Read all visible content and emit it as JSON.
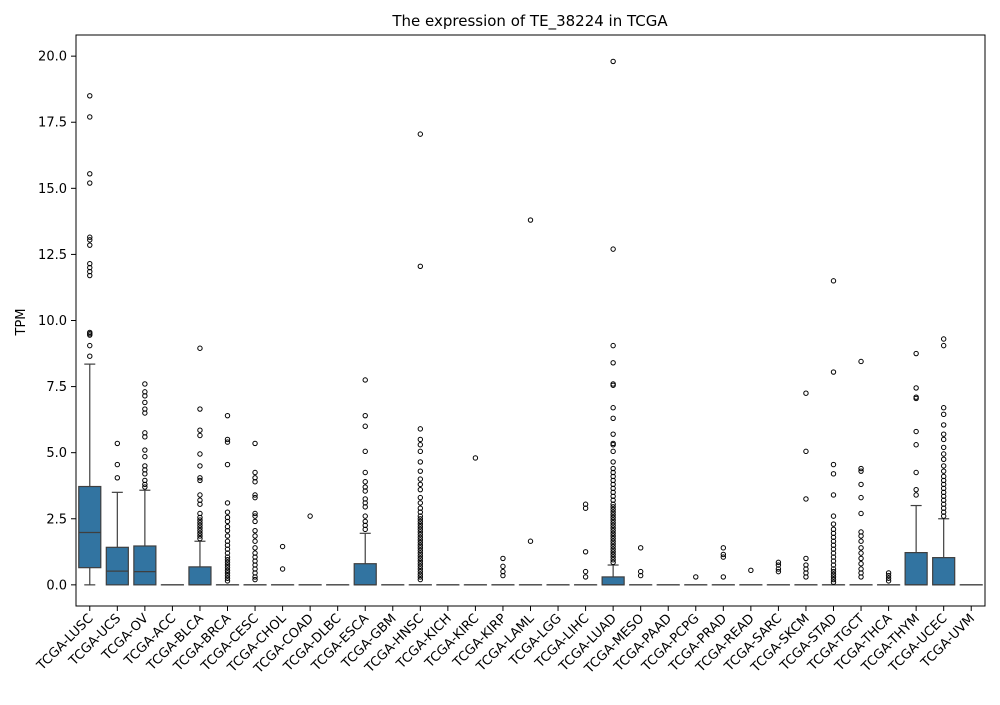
{
  "chart_data": {
    "type": "box",
    "title": "The expression of TE_38224 in TCGA",
    "ylabel": "TPM",
    "xlabel": "",
    "ylim": [
      -0.8,
      20.8
    ],
    "yticks": [
      0.0,
      2.5,
      5.0,
      7.5,
      10.0,
      12.5,
      15.0,
      17.5,
      20.0
    ],
    "ytick_labels": [
      "0.0",
      "2.5",
      "5.0",
      "7.5",
      "10.0",
      "12.5",
      "15.0",
      "17.5",
      "20.0"
    ],
    "grid": false,
    "legend": false,
    "box_color": "#3274a1",
    "categories": [
      "TCGA-LUSC",
      "TCGA-UCS",
      "TCGA-OV",
      "TCGA-ACC",
      "TCGA-BLCA",
      "TCGA-BRCA",
      "TCGA-CESC",
      "TCGA-CHOL",
      "TCGA-COAD",
      "TCGA-DLBC",
      "TCGA-ESCA",
      "TCGA-GBM",
      "TCGA-HNSC",
      "TCGA-KICH",
      "TCGA-KIRC",
      "TCGA-KIRP",
      "TCGA-LAML",
      "TCGA-LGG",
      "TCGA-LIHC",
      "TCGA-LUAD",
      "TCGA-MESO",
      "TCGA-PAAD",
      "TCGA-PCPG",
      "TCGA-PRAD",
      "TCGA-READ",
      "TCGA-SARC",
      "TCGA-SKCM",
      "TCGA-STAD",
      "TCGA-TGCT",
      "TCGA-THCA",
      "TCGA-THYM",
      "TCGA-UCEC",
      "TCGA-UVM"
    ],
    "boxes": [
      {
        "q1": 0.65,
        "median": 1.98,
        "q3": 3.72,
        "whisker_low": 0.0,
        "whisker_high": 8.35,
        "outliers": [
          8.65,
          9.05,
          9.45,
          9.5,
          9.55,
          11.7,
          11.85,
          12.0,
          12.15,
          12.85,
          13.05,
          13.15,
          15.2,
          15.55,
          17.7,
          18.5
        ]
      },
      {
        "q1": 0.0,
        "median": 0.52,
        "q3": 1.42,
        "whisker_low": 0.0,
        "whisker_high": 3.5,
        "outliers": [
          4.05,
          4.55,
          5.35
        ]
      },
      {
        "q1": 0.0,
        "median": 0.5,
        "q3": 1.47,
        "whisker_low": 0.0,
        "whisker_high": 3.58,
        "outliers": [
          3.7,
          3.8,
          3.95,
          4.2,
          4.35,
          4.5,
          4.85,
          5.1,
          5.6,
          5.75,
          6.5,
          6.65,
          6.9,
          7.15,
          7.3,
          7.6
        ]
      },
      {
        "q1": 0.0,
        "median": 0.0,
        "q3": 0.0,
        "whisker_low": 0.0,
        "whisker_high": 0.0,
        "outliers": []
      },
      {
        "q1": 0.0,
        "median": 0.0,
        "q3": 0.68,
        "whisker_low": 0.0,
        "whisker_high": 1.65,
        "outliers": [
          1.75,
          1.85,
          1.95,
          2.05,
          2.15,
          2.25,
          2.35,
          2.45,
          2.55,
          2.7,
          3.05,
          3.2,
          3.4,
          3.95,
          4.05,
          4.5,
          4.95,
          5.65,
          5.85,
          6.65,
          8.95
        ]
      },
      {
        "q1": 0.0,
        "median": 0.0,
        "q3": 0.0,
        "whisker_low": 0.0,
        "whisker_high": 0.0,
        "outliers": [
          0.15,
          0.25,
          0.35,
          0.45,
          0.55,
          0.65,
          0.75,
          0.85,
          0.95,
          1.05,
          1.2,
          1.35,
          1.5,
          1.65,
          1.85,
          2.05,
          2.2,
          2.4,
          2.55,
          2.75,
          3.1,
          4.55,
          5.4,
          5.5,
          6.4
        ]
      },
      {
        "q1": 0.0,
        "median": 0.0,
        "q3": 0.0,
        "whisker_low": 0.0,
        "whisker_high": 0.0,
        "outliers": [
          0.2,
          0.3,
          0.45,
          0.6,
          0.75,
          0.9,
          1.05,
          1.2,
          1.4,
          1.65,
          1.85,
          2.05,
          2.4,
          2.6,
          2.7,
          3.3,
          3.4,
          3.9,
          4.05,
          4.25,
          5.35
        ]
      },
      {
        "q1": 0.0,
        "median": 0.0,
        "q3": 0.0,
        "whisker_low": 0.0,
        "whisker_high": 0.0,
        "outliers": [
          0.6,
          1.45
        ]
      },
      {
        "q1": 0.0,
        "median": 0.0,
        "q3": 0.0,
        "whisker_low": 0.0,
        "whisker_high": 0.0,
        "outliers": [
          2.6
        ]
      },
      {
        "q1": 0.0,
        "median": 0.0,
        "q3": 0.0,
        "whisker_low": 0.0,
        "whisker_high": 0.0,
        "outliers": []
      },
      {
        "q1": 0.0,
        "median": 0.0,
        "q3": 0.8,
        "whisker_low": 0.0,
        "whisker_high": 1.95,
        "outliers": [
          2.1,
          2.25,
          2.4,
          2.6,
          2.95,
          3.1,
          3.25,
          3.55,
          3.7,
          3.9,
          4.25,
          5.05,
          6.0,
          6.4,
          7.75
        ]
      },
      {
        "q1": 0.0,
        "median": 0.0,
        "q3": 0.0,
        "whisker_low": 0.0,
        "whisker_high": 0.0,
        "outliers": []
      },
      {
        "q1": 0.0,
        "median": 0.0,
        "q3": 0.0,
        "whisker_low": 0.0,
        "whisker_high": 0.0,
        "outliers": [
          0.2,
          0.3,
          0.4,
          0.5,
          0.6,
          0.7,
          0.8,
          0.9,
          1.0,
          1.1,
          1.2,
          1.3,
          1.4,
          1.5,
          1.6,
          1.7,
          1.8,
          1.9,
          2.0,
          2.1,
          2.2,
          2.3,
          2.4,
          2.5,
          2.6,
          2.75,
          2.9,
          3.1,
          3.3,
          3.6,
          3.8,
          4.0,
          4.3,
          4.65,
          5.05,
          5.3,
          5.5,
          5.9,
          12.05,
          17.05
        ]
      },
      {
        "q1": 0.0,
        "median": 0.0,
        "q3": 0.0,
        "whisker_low": 0.0,
        "whisker_high": 0.0,
        "outliers": []
      },
      {
        "q1": 0.0,
        "median": 0.0,
        "q3": 0.0,
        "whisker_low": 0.0,
        "whisker_high": 0.0,
        "outliers": [
          4.8
        ]
      },
      {
        "q1": 0.0,
        "median": 0.0,
        "q3": 0.0,
        "whisker_low": 0.0,
        "whisker_high": 0.0,
        "outliers": [
          0.35,
          0.5,
          0.7,
          1.0
        ]
      },
      {
        "q1": 0.0,
        "median": 0.0,
        "q3": 0.0,
        "whisker_low": 0.0,
        "whisker_high": 0.0,
        "outliers": [
          1.65,
          13.8
        ]
      },
      {
        "q1": 0.0,
        "median": 0.0,
        "q3": 0.0,
        "whisker_low": 0.0,
        "whisker_high": 0.0,
        "outliers": []
      },
      {
        "q1": 0.0,
        "median": 0.0,
        "q3": 0.0,
        "whisker_low": 0.0,
        "whisker_high": 0.0,
        "outliers": [
          0.3,
          0.5,
          1.25,
          2.9,
          3.05
        ]
      },
      {
        "q1": 0.0,
        "median": 0.0,
        "q3": 0.3,
        "whisker_low": 0.0,
        "whisker_high": 0.75,
        "outliers": [
          0.85,
          0.95,
          1.05,
          1.15,
          1.25,
          1.35,
          1.45,
          1.55,
          1.65,
          1.75,
          1.85,
          1.95,
          2.05,
          2.15,
          2.25,
          2.35,
          2.45,
          2.55,
          2.65,
          2.75,
          2.85,
          2.95,
          3.05,
          3.2,
          3.35,
          3.5,
          3.65,
          3.8,
          3.95,
          4.1,
          4.25,
          4.4,
          4.65,
          5.05,
          5.3,
          5.35,
          5.7,
          6.3,
          6.7,
          7.55,
          7.6,
          8.4,
          9.05,
          12.7,
          19.8
        ]
      },
      {
        "q1": 0.0,
        "median": 0.0,
        "q3": 0.0,
        "whisker_low": 0.0,
        "whisker_high": 0.0,
        "outliers": [
          0.35,
          0.5,
          1.4
        ]
      },
      {
        "q1": 0.0,
        "median": 0.0,
        "q3": 0.0,
        "whisker_low": 0.0,
        "whisker_high": 0.0,
        "outliers": []
      },
      {
        "q1": 0.0,
        "median": 0.0,
        "q3": 0.0,
        "whisker_low": 0.0,
        "whisker_high": 0.0,
        "outliers": [
          0.3
        ]
      },
      {
        "q1": 0.0,
        "median": 0.0,
        "q3": 0.0,
        "whisker_low": 0.0,
        "whisker_high": 0.0,
        "outliers": [
          0.3,
          1.05,
          1.15,
          1.4
        ]
      },
      {
        "q1": 0.0,
        "median": 0.0,
        "q3": 0.0,
        "whisker_low": 0.0,
        "whisker_high": 0.0,
        "outliers": [
          0.55
        ]
      },
      {
        "q1": 0.0,
        "median": 0.0,
        "q3": 0.0,
        "whisker_low": 0.0,
        "whisker_high": 0.0,
        "outliers": [
          0.5,
          0.6,
          0.75,
          0.85
        ]
      },
      {
        "q1": 0.0,
        "median": 0.0,
        "q3": 0.0,
        "whisker_low": 0.0,
        "whisker_high": 0.0,
        "outliers": [
          0.3,
          0.45,
          0.6,
          0.75,
          1.0,
          3.25,
          5.05,
          7.25
        ]
      },
      {
        "q1": 0.0,
        "median": 0.0,
        "q3": 0.0,
        "whisker_low": 0.0,
        "whisker_high": 0.0,
        "outliers": [
          0.1,
          0.2,
          0.3,
          0.4,
          0.5,
          0.6,
          0.75,
          0.9,
          1.05,
          1.2,
          1.35,
          1.5,
          1.65,
          1.8,
          1.95,
          2.1,
          2.3,
          2.6,
          3.4,
          4.2,
          4.55,
          8.05,
          11.5
        ]
      },
      {
        "q1": 0.0,
        "median": 0.0,
        "q3": 0.0,
        "whisker_low": 0.0,
        "whisker_high": 0.0,
        "outliers": [
          0.3,
          0.45,
          0.6,
          0.8,
          1.0,
          1.2,
          1.4,
          1.65,
          1.85,
          2.0,
          2.7,
          3.3,
          3.8,
          4.3,
          4.4,
          8.45
        ]
      },
      {
        "q1": 0.0,
        "median": 0.0,
        "q3": 0.0,
        "whisker_low": 0.0,
        "whisker_high": 0.0,
        "outliers": [
          0.15,
          0.25,
          0.35,
          0.45
        ]
      },
      {
        "q1": 0.0,
        "median": 0.0,
        "q3": 1.22,
        "whisker_low": 0.0,
        "whisker_high": 3.0,
        "outliers": [
          3.4,
          3.6,
          4.25,
          5.3,
          5.8,
          7.05,
          7.1,
          7.45,
          8.75
        ]
      },
      {
        "q1": 0.0,
        "median": 0.0,
        "q3": 1.03,
        "whisker_low": 0.0,
        "whisker_high": 2.5,
        "outliers": [
          2.6,
          2.75,
          2.9,
          3.05,
          3.2,
          3.35,
          3.5,
          3.65,
          3.8,
          3.95,
          4.1,
          4.3,
          4.5,
          4.75,
          4.95,
          5.2,
          5.5,
          5.7,
          6.05,
          6.45,
          6.7,
          9.05,
          9.3
        ]
      },
      {
        "q1": 0.0,
        "median": 0.0,
        "q3": 0.0,
        "whisker_low": 0.0,
        "whisker_high": 0.0,
        "outliers": []
      }
    ]
  }
}
